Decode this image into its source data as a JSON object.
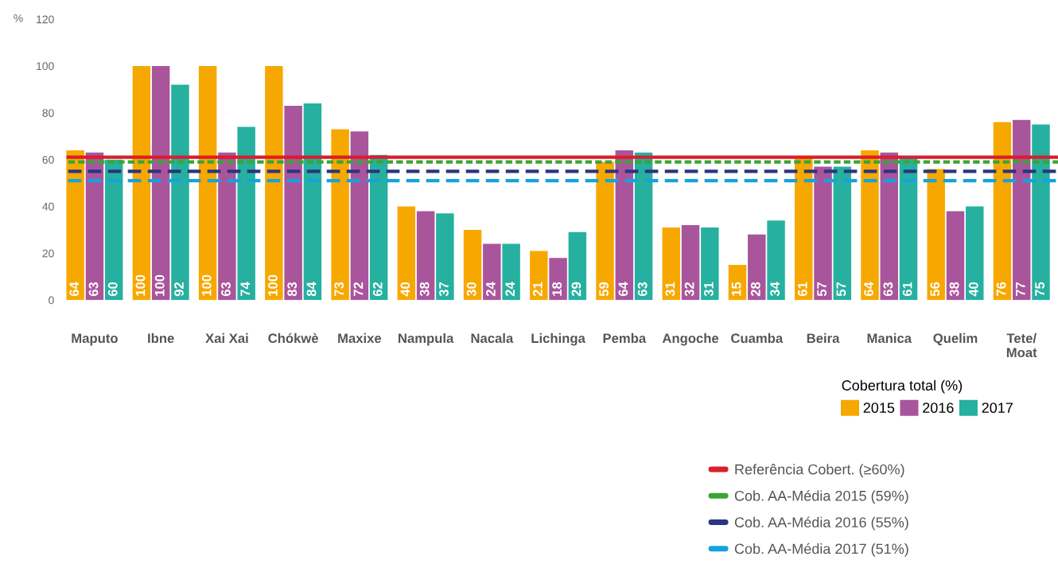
{
  "chart_data": {
    "type": "bar",
    "ylabel": "%",
    "legend_title": "Cobertura total (%)",
    "categories": [
      "Maputo",
      "Ibne",
      "Xai Xai",
      "Chókwè",
      "Maxixe",
      "Nampula",
      "Nacala",
      "Lichinga",
      "Pemba",
      "Angoche",
      "Cuamba",
      "Beira",
      "Manica",
      "Quelim",
      "Tete/\nMoat"
    ],
    "series": [
      {
        "name": "2015",
        "color": "#f7a800",
        "values": [
          64,
          100,
          100,
          100,
          73,
          40,
          30,
          21,
          59,
          31,
          15,
          61,
          64,
          56,
          76
        ]
      },
      {
        "name": "2016",
        "color": "#a9559c",
        "values": [
          63,
          100,
          63,
          83,
          72,
          38,
          24,
          18,
          64,
          32,
          28,
          57,
          63,
          38,
          77
        ]
      },
      {
        "name": "2017",
        "color": "#26b0a0",
        "values": [
          60,
          92,
          74,
          84,
          62,
          37,
          24,
          29,
          63,
          31,
          34,
          57,
          61,
          40,
          75
        ]
      }
    ],
    "ylim": [
      0,
      120
    ],
    "yticks": [
      0,
      20,
      40,
      60,
      80,
      100,
      120
    ],
    "grid": false,
    "data_labels": true,
    "legend": "bottom right",
    "ref_lines": [
      {
        "axis": "y",
        "value": 61,
        "label": "Referência Cobert. (≥60%)",
        "color": "#d7202a",
        "line_style": "solid"
      },
      {
        "axis": "y",
        "value": 59,
        "label": "Cob. AA-Média 2015 (59%)",
        "color": "#3aa535",
        "line_style": "dotted"
      },
      {
        "axis": "y",
        "value": 55,
        "label": "Cob. AA-Média 2016 (55%)",
        "color": "#2b3580",
        "line_style": "dashed"
      },
      {
        "axis": "y",
        "value": 51,
        "label": "Cob. AA-Média 2017 (51%)",
        "color": "#14a3dc",
        "line_style": "dashed"
      }
    ]
  }
}
